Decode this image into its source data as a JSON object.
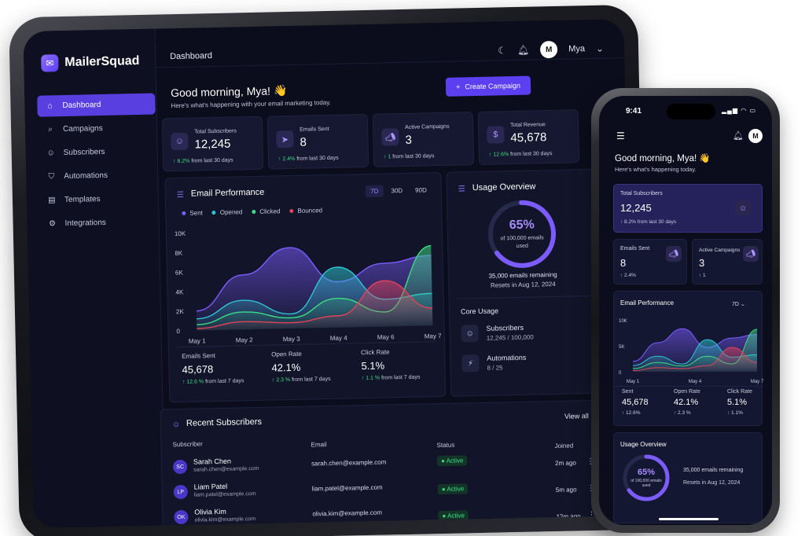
{
  "app": {
    "name": "MailerSquad",
    "page_title": "Dashboard",
    "user_name": "Mya",
    "user_initial": "M"
  },
  "sidebar": {
    "items": [
      {
        "label": "Dashboard",
        "icon": "home-icon",
        "active": true
      },
      {
        "label": "Campaigns",
        "icon": "search-icon"
      },
      {
        "label": "Subscribers",
        "icon": "users-icon"
      },
      {
        "label": "Automations",
        "icon": "shield-icon"
      },
      {
        "label": "Templates",
        "icon": "template-icon"
      },
      {
        "label": "Integrations",
        "icon": "gear-icon"
      }
    ]
  },
  "header": {
    "greeting": "Good morning, Mya! 👋",
    "subtitle": "Here's what's happening with your email marketing today.",
    "create_label": "Create Campaign"
  },
  "stats": [
    {
      "label": "Total Subscribers",
      "value": "12,245",
      "delta": "8.2%",
      "delta_text": "from last 30 days",
      "icon": "users-icon"
    },
    {
      "label": "Emails Sent",
      "value": "8",
      "delta": "2.4%",
      "delta_text": "from last 30 days",
      "icon": "send-icon"
    },
    {
      "label": "Active Campaigns",
      "value": "3",
      "delta": "1",
      "delta_text": "from last 30 days",
      "icon": "megaphone-icon"
    },
    {
      "label": "Total Revenue",
      "value": "45,678",
      "delta": "12.6%",
      "delta_text": "from last 30 days",
      "icon": "dollar-icon"
    }
  ],
  "email_performance": {
    "title": "Email Performance",
    "ranges": [
      "7D",
      "30D",
      "90D"
    ],
    "active_range": "7D",
    "metrics": [
      {
        "label": "Emails Sent",
        "value": "45,678",
        "delta": "12.6 %",
        "delta_text": "from last 7 days"
      },
      {
        "label": "Open Rate",
        "value": "42.1%",
        "delta": "2.3 %",
        "delta_text": "from last 7 days"
      },
      {
        "label": "Click Rate",
        "value": "5.1%",
        "delta": "1.1 %",
        "delta_text": "from last 7 days"
      }
    ]
  },
  "chart_data": {
    "type": "area",
    "x": [
      "May 1",
      "May 2",
      "May 3",
      "May 4",
      "May 6",
      "May 7"
    ],
    "yticks": [
      "0",
      "2K",
      "4K",
      "6K",
      "8K",
      "10K"
    ],
    "ylim": [
      0,
      10000
    ],
    "series": [
      {
        "name": "Sent",
        "color": "#7c5cff",
        "values": [
          2000,
          5600,
          8300,
          4700,
          6500,
          7200
        ]
      },
      {
        "name": "Opened",
        "color": "#2ec5d3",
        "values": [
          1200,
          3000,
          1500,
          6200,
          2800,
          3300
        ]
      },
      {
        "name": "Clicked",
        "color": "#3ddc84",
        "values": [
          600,
          1800,
          1100,
          3000,
          1500,
          8200
        ]
      },
      {
        "name": "Bounced",
        "color": "#e0435a",
        "values": [
          200,
          800,
          600,
          1200,
          4700,
          1800
        ]
      }
    ],
    "legend": "top-left",
    "grid": false
  },
  "usage": {
    "title": "Usage Overview",
    "percent": "65%",
    "percent_value": 0.65,
    "ring_caption": "of 100,000 emails used",
    "remaining": "35,000 emails remaining",
    "reset": "Resets in Aug 12, 2024",
    "core_title": "Core Usage",
    "core": [
      {
        "name": "Subscribers",
        "count": "12,245 / 100,000",
        "icon": "users-icon"
      },
      {
        "name": "Automations",
        "count": "8 / 25",
        "icon": "bolt-icon"
      }
    ]
  },
  "recent": {
    "title": "Recent Subscribers",
    "view_all": "View all",
    "columns": [
      "Subscriber",
      "Email",
      "Status",
      "Joined"
    ],
    "rows": [
      {
        "initials": "SC",
        "name": "Sarah Chen",
        "email": "sarah.chen@example.com",
        "status": "Active",
        "joined": "2m ago"
      },
      {
        "initials": "LP",
        "name": "Liam Patel",
        "email": "liam.patel@example.com",
        "status": "Active",
        "joined": "5m ago"
      },
      {
        "initials": "OK",
        "name": "Olivia Kim",
        "email": "olivia.kim@example.com",
        "status": "Active",
        "joined": "12m ago"
      }
    ]
  },
  "phone": {
    "time": "9:41",
    "greeting": "Good morning, Mya! 👋",
    "subtitle": "Here's what's happening today.",
    "total_label": "Total Subscribers",
    "total_value": "12,245",
    "total_delta": "↑ 8.2% from last 30 days",
    "sent_label": "Emails Sent",
    "sent_value": "8",
    "sent_delta": "↑ 2.4%",
    "camp_label": "Active Campaigns",
    "camp_value": "3",
    "camp_delta": "↑ 1",
    "perf_title": "Email Performance",
    "perf_range": "7D",
    "chart_x": [
      "May 1",
      "May 4",
      "May 7"
    ],
    "chart_y": [
      "10K",
      "5K",
      "0"
    ],
    "metrics": [
      {
        "label": "Sent",
        "value": "45,678",
        "delta": "↑ 12.6%"
      },
      {
        "label": "Open Rate",
        "value": "42.1%",
        "delta": "↑ 2.3 %"
      },
      {
        "label": "Click Rate",
        "value": "5.1%",
        "delta": "↑ 1.1%"
      }
    ],
    "usage_title": "Usage Overview",
    "usage_pct": "65%",
    "usage_caption": "of 100,000 emails used",
    "usage_remaining": "35,000 emails remaining",
    "usage_reset": "Resets in Aug 12, 2024"
  }
}
